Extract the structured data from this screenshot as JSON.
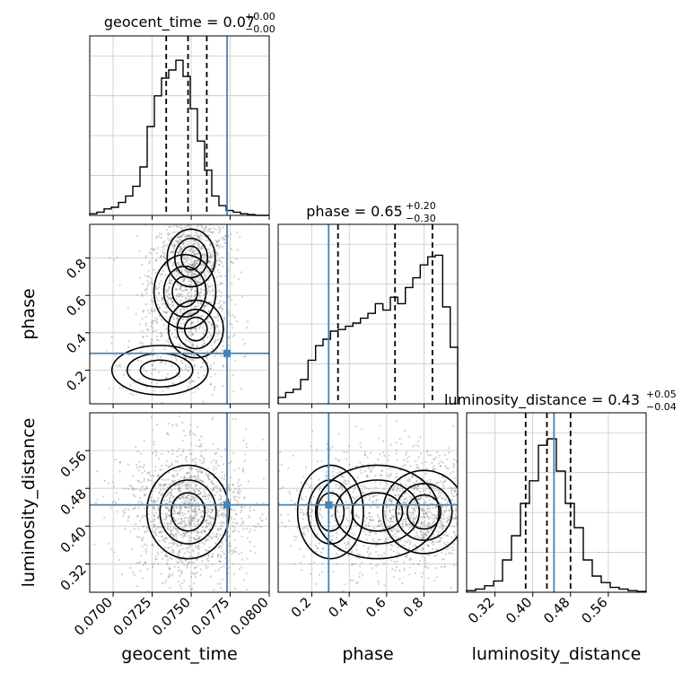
{
  "chart_data": {
    "type": "corner",
    "parameters": [
      "geocent_time",
      "phase",
      "luminosity_distance"
    ],
    "truth": {
      "geocent_time": 0.0773,
      "phase": 0.29,
      "luminosity_distance": 0.445
    },
    "truth_color": "#4682b4",
    "titles": [
      {
        "lhs": "geocent_time = 0.07",
        "sup": "+0.00",
        "sub": "−0.00"
      },
      {
        "lhs": "phase = 0.65",
        "sup": "+0.20",
        "sub": "−0.30"
      },
      {
        "lhs": "luminosity_distance = 0.43",
        "sup": "+0.05",
        "sub": "−0.04"
      }
    ],
    "quantiles": {
      "geocent_time": [
        0.0734,
        0.0748,
        0.076
      ],
      "phase": [
        0.34,
        0.645,
        0.845
      ],
      "luminosity_distance": [
        0.385,
        0.43,
        0.48
      ]
    },
    "axes": {
      "geocent_time": {
        "range": [
          0.0685,
          0.08
        ],
        "ticks": [
          0.07,
          0.0725,
          0.075,
          0.0775,
          0.08
        ],
        "tick_labels": [
          "0.0700",
          "0.0725",
          "0.0750",
          "0.0775",
          "0.0800"
        ]
      },
      "phase": {
        "range": [
          0.02,
          0.98
        ],
        "ticks": [
          0.2,
          0.4,
          0.6,
          0.8
        ],
        "tick_labels": [
          "0.2",
          "0.4",
          "0.6",
          "0.8"
        ]
      },
      "luminosity_distance": {
        "range": [
          0.26,
          0.64
        ],
        "ticks": [
          0.32,
          0.4,
          0.48,
          0.56
        ],
        "tick_labels": [
          "0.32",
          "0.40",
          "0.48",
          "0.56"
        ]
      }
    },
    "histograms": {
      "geocent_time": [
        0.01,
        0.02,
        0.04,
        0.05,
        0.08,
        0.12,
        0.18,
        0.3,
        0.55,
        0.74,
        0.85,
        0.9,
        0.96,
        0.86,
        0.66,
        0.46,
        0.28,
        0.12,
        0.06,
        0.03,
        0.02,
        0.01,
        0.005,
        0,
        0
      ],
      "phase": [
        0.04,
        0.07,
        0.09,
        0.15,
        0.27,
        0.36,
        0.4,
        0.45,
        0.46,
        0.48,
        0.5,
        0.53,
        0.56,
        0.62,
        0.58,
        0.66,
        0.62,
        0.72,
        0.78,
        0.86,
        0.91,
        0.92,
        0.6,
        0.35
      ],
      "luminosity_distance": [
        0.01,
        0.02,
        0.04,
        0.07,
        0.2,
        0.35,
        0.55,
        0.69,
        0.91,
        0.95,
        0.75,
        0.55,
        0.4,
        0.2,
        0.1,
        0.06,
        0.03,
        0.02,
        0.01,
        0.005
      ]
    },
    "hist_ymax": {
      "geocent_time": 1.0,
      "phase": 1.0,
      "luminosity_distance": 1.0
    },
    "grid": true,
    "line_color": "#000000"
  }
}
